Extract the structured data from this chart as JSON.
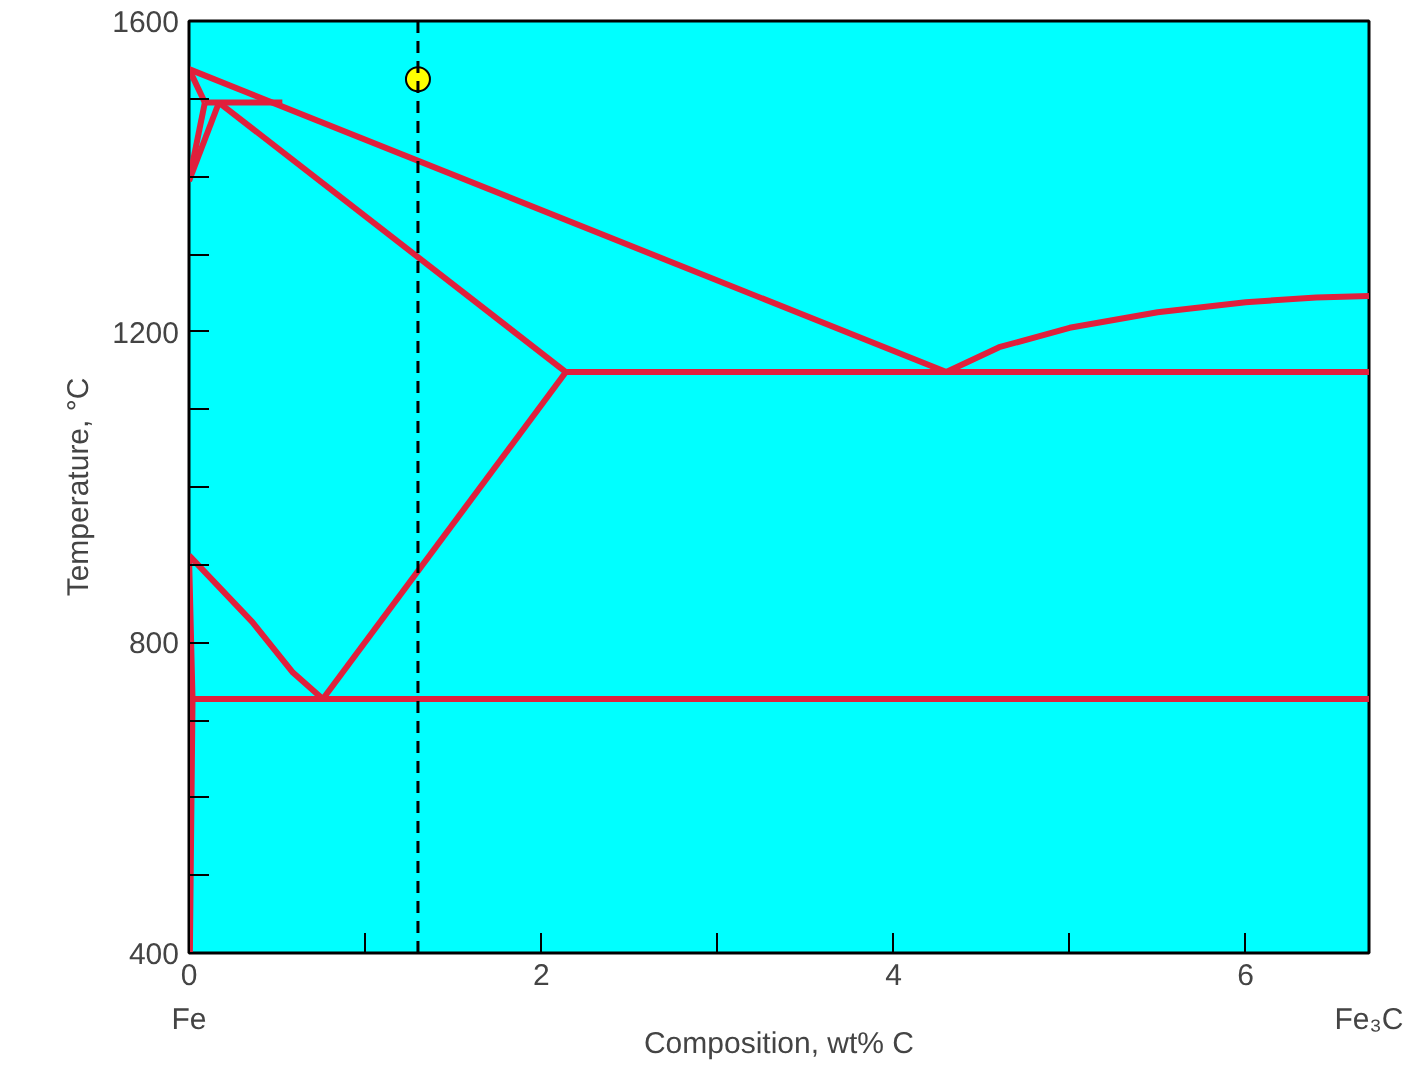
{
  "chart_data": {
    "type": "line",
    "xlabel": "Composition, wt% C",
    "ylabel": "Temperature, °C",
    "xlim": [
      0,
      6.7
    ],
    "ylim": [
      400,
      1600
    ],
    "xticks": [
      0,
      {
        "value": 1,
        "label": null
      },
      2,
      {
        "value": 3,
        "label": null
      },
      4,
      {
        "value": 5,
        "label": null
      },
      6
    ],
    "yticks": [
      400,
      {
        "value": 500,
        "label": null
      },
      {
        "value": 600,
        "label": null
      },
      {
        "value": 700,
        "label": null
      },
      800,
      {
        "value": 900,
        "label": null
      },
      {
        "value": 1000,
        "label": null
      },
      {
        "value": 1100,
        "label": null
      },
      1200,
      {
        "value": 1300,
        "label": null
      },
      {
        "value": 1400,
        "label": null
      },
      {
        "value": 1500,
        "label": null
      },
      1600
    ],
    "grid": false,
    "marker": "none",
    "line_style": "solid",
    "series": [
      {
        "color": "#e0203c",
        "x": [
          0,
          4.3
        ],
        "values": [
          1538,
          1148
        ]
      },
      {
        "color": "#e0203c",
        "x": [
          4.3,
          4.6,
          5,
          5.5,
          6,
          6.4,
          6.7
        ],
        "values": [
          1148,
          1180,
          1205,
          1225,
          1238,
          1244,
          1246
        ]
      },
      {
        "color": "#e0203c",
        "x": [
          0.09,
          0.53
        ],
        "values": [
          1495,
          1495
        ]
      },
      {
        "color": "#e0203c",
        "x": [
          0,
          0.09
        ],
        "values": [
          1538,
          1495
        ]
      },
      {
        "color": "#e0203c",
        "x": [
          0,
          0.09
        ],
        "values": [
          1394,
          1495
        ]
      },
      {
        "color": "#e0203c",
        "x": [
          0,
          0.17
        ],
        "values": [
          1394,
          1495
        ]
      },
      {
        "color": "#e0203c",
        "x": [
          0.17,
          2.14
        ],
        "values": [
          1495,
          1148
        ]
      },
      {
        "color": "#e0203c",
        "x": [
          2.14,
          6.7
        ],
        "values": [
          1148,
          1148
        ]
      },
      {
        "color": "#e0203c",
        "x": [
          2.14,
          0.76
        ],
        "values": [
          1148,
          727
        ]
      },
      {
        "color": "#e0203c",
        "x": [
          0,
          0.36,
          0.59,
          0.76
        ],
        "values": [
          912,
          826,
          761,
          727
        ]
      },
      {
        "color": "#e0203c",
        "x": [
          0.02,
          6.7
        ],
        "values": [
          727,
          727
        ]
      },
      {
        "color": "#e0203c",
        "x": [
          0,
          0.02,
          0.005
        ],
        "values": [
          912,
          727,
          400
        ]
      },
      {
        "type": "scatter",
        "marker": "circle",
        "color": "#ffff00",
        "x": [
          1.3
        ],
        "values": [
          1525
        ]
      }
    ],
    "ref_lines": [
      {
        "axis": "x",
        "value": 1.3,
        "color": "#000000",
        "line_style": "dashed"
      }
    ],
    "annotations": [
      "Fe",
      "Fe₃C"
    ]
  }
}
